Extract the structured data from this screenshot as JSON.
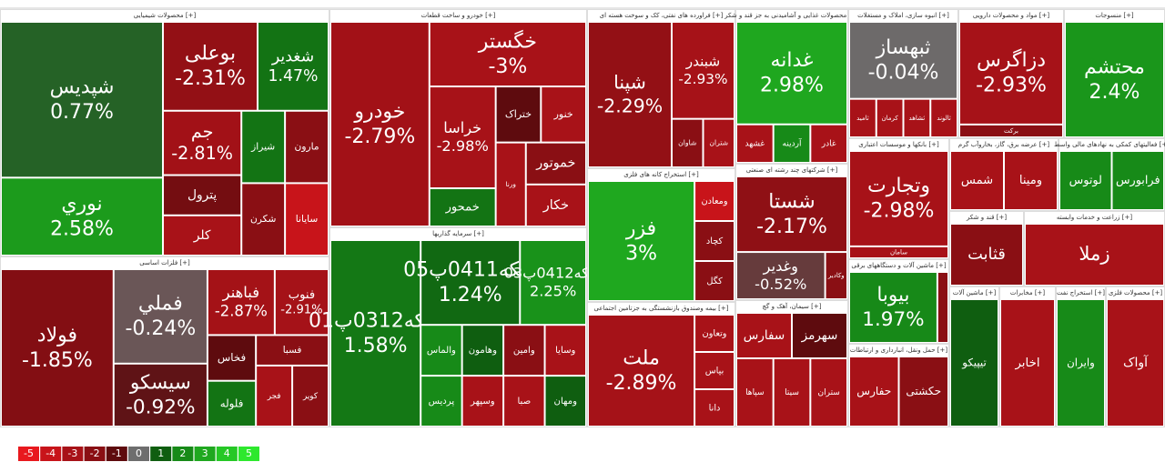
{
  "chart_data": {
    "type": "treemap",
    "sectors": [
      {
        "title": "محصولات شیمیایی [+]",
        "tiles": [
          {
            "name": "شپدیس",
            "value": 0.77,
            "label": "0.77%"
          },
          {
            "name": "نوري",
            "value": 2.58,
            "label": "2.58%"
          },
          {
            "name": "بوعلی",
            "value": -2.31,
            "label": "-2.31%"
          },
          {
            "name": "شغدیر",
            "value": 1.47,
            "label": "1.47%"
          },
          {
            "name": "جم",
            "value": -2.81,
            "label": "-2.81%"
          },
          {
            "name": "پترول",
            "value": -1.5
          },
          {
            "name": "کلر",
            "value": -3
          },
          {
            "name": "شیراز",
            "value": 1.5
          },
          {
            "name": "مارون",
            "value": -2
          },
          {
            "name": "شکرن",
            "value": -2
          },
          {
            "name": "سایانا",
            "value": -4
          }
        ]
      },
      {
        "title": "فلزات اساسی [+]",
        "tiles": [
          {
            "name": "فولاد",
            "value": -1.85,
            "label": "-1.85%"
          },
          {
            "name": "فملي",
            "value": -0.24,
            "label": "-0.24%"
          },
          {
            "name": "سیسکو",
            "value": -0.92,
            "label": "-0.92%"
          },
          {
            "name": "فباهنر",
            "value": -2.87,
            "label": "-2.87%"
          },
          {
            "name": "فنوب",
            "value": -2.91,
            "label": "-2.91%"
          },
          {
            "name": "فخاس",
            "value": -1
          },
          {
            "name": "فلوله",
            "value": 1.5
          },
          {
            "name": "فسبا",
            "value": -2
          },
          {
            "name": "فجر",
            "value": -3
          },
          {
            "name": "کویر",
            "value": -2
          }
        ]
      },
      {
        "title": "خودرو و ساخت قطعات [+]",
        "tiles": [
          {
            "name": "خودرو",
            "value": -2.79,
            "label": "-2.79%"
          },
          {
            "name": "خگستر",
            "value": -3,
            "label": "-3%"
          },
          {
            "name": "خراسا",
            "value": -2.98,
            "label": "-2.98%"
          },
          {
            "name": "خمحور",
            "value": 1.5
          },
          {
            "name": "ختراک",
            "value": -1
          },
          {
            "name": "خنور",
            "value": -3
          },
          {
            "name": "ورنا",
            "value": -3
          },
          {
            "name": "خموتور",
            "value": -2
          },
          {
            "name": "خکار",
            "value": -3
          }
        ]
      },
      {
        "title": "سرمایه گذاریها [+]",
        "tiles": [
          {
            "name": "سکه0312پ01",
            "value": 1.58,
            "label": "1.58%"
          },
          {
            "name": "سکه0411پ05",
            "value": 1.24,
            "label": "1.24%"
          },
          {
            "name": "سکه0412پ03",
            "value": 2.25,
            "label": "2.25%"
          },
          {
            "name": "والماس",
            "value": 2
          },
          {
            "name": "وهامون",
            "value": 1
          },
          {
            "name": "پردیس",
            "value": 2
          },
          {
            "name": "وسپهر",
            "value": -3
          },
          {
            "name": "وامین",
            "value": -2
          },
          {
            "name": "وسایا",
            "value": -3
          },
          {
            "name": "صبا",
            "value": -3
          },
          {
            "name": "ومهان",
            "value": 1
          }
        ]
      },
      {
        "title": "فراورده های نفتی، کک و سوخت هسته ای [+]",
        "tiles": [
          {
            "name": "شپنا",
            "value": -2.29,
            "label": "-2.29%"
          },
          {
            "name": "شبندر",
            "value": -2.93,
            "label": "-2.93%"
          },
          {
            "name": "شاوان",
            "value": -2
          },
          {
            "name": "شتران",
            "value": -3
          }
        ]
      },
      {
        "title": "استخراج کانه های فلزی [+]",
        "tiles": [
          {
            "name": "فزر",
            "value": 3,
            "label": "3%"
          },
          {
            "name": "ومعادن",
            "value": -4
          },
          {
            "name": "کچاد",
            "value": -2
          },
          {
            "name": "کگل",
            "value": -2
          }
        ]
      },
      {
        "title": "بیمه وصندوق بازنشستگی به جزتامین اجتماعی [+]",
        "tiles": [
          {
            "name": "ملت",
            "value": -2.89,
            "label": "-2.89%"
          },
          {
            "name": "وتعاون",
            "value": -3
          },
          {
            "name": "بپاس",
            "value": -3
          },
          {
            "name": "دانا",
            "value": -3
          }
        ]
      },
      {
        "title": "محصولات غذایی و آشامیدنی به جز قند و شکر [+]",
        "tiles": [
          {
            "name": "غدانه",
            "value": 2.98,
            "label": "2.98%"
          },
          {
            "name": "غشهد",
            "value": -3
          },
          {
            "name": "آردینه",
            "value": 2
          },
          {
            "name": "غادر",
            "value": -3
          }
        ]
      },
      {
        "title": "شرکتهای چند رشته ای صنعتی [+]",
        "tiles": [
          {
            "name": "شستا",
            "value": -2.17,
            "label": "-2.17%"
          },
          {
            "name": "وغدیر",
            "value": -0.52,
            "label": "-0.52%"
          },
          {
            "name": "وکادیر",
            "value": -2
          }
        ]
      },
      {
        "title": "سیمان، آهک و گچ [+]",
        "tiles": [
          {
            "name": "سفارس",
            "value": -3
          },
          {
            "name": "سهرمز",
            "value": -1
          },
          {
            "name": "سپاها",
            "value": -3
          },
          {
            "name": "سیتا",
            "value": -3
          },
          {
            "name": "ستران",
            "value": -3
          }
        ]
      },
      {
        "title": "انبوه سازی، املاک و مستغلات [+]",
        "tiles": [
          {
            "name": "ثبهساز",
            "value": -0.04,
            "label": "-0.04%"
          },
          {
            "name": "ثامید",
            "value": -3
          },
          {
            "name": "کرمان",
            "value": -3
          },
          {
            "name": "ثشاهد",
            "value": -3
          },
          {
            "name": "ثالوند",
            "value": -3
          }
        ]
      },
      {
        "title": "بانکها و موسسات اعتباری [+]",
        "tiles": [
          {
            "name": "وتجارت",
            "value": -2.98,
            "label": "-2.98%"
          },
          {
            "name": "سامان",
            "value": -3
          }
        ]
      },
      {
        "title": "ماشین آلات و دستگاههای برقی [+]",
        "tiles": [
          {
            "name": "بیوبا",
            "value": 1.97,
            "label": "1.97%"
          },
          {
            "name": "بترانس",
            "value": -2
          }
        ]
      },
      {
        "title": "حمل ونقل، انبارداری و ارتباطات [+]",
        "tiles": [
          {
            "name": "حفارس",
            "value": -3
          },
          {
            "name": "حکشتی",
            "value": -2
          }
        ]
      },
      {
        "title": "مواد و محصولات دارویی [+]",
        "tiles": [
          {
            "name": "دزاگرس",
            "value": -2.93,
            "label": "-2.93%"
          },
          {
            "name": "برکت",
            "value": -2
          }
        ]
      },
      {
        "title": "منسوجات [+]",
        "tiles": [
          {
            "name": "محتشم",
            "value": 2.4,
            "label": "2.4%"
          }
        ]
      },
      {
        "title": "عرضه برق، گاز، بخاروآب گرم [+]",
        "tiles": [
          {
            "name": "شمس",
            "value": -3
          },
          {
            "name": "ومینا",
            "value": -3
          }
        ]
      },
      {
        "title": "فعالیتهای کمکی به نهادهای مالی واسط [+]",
        "tiles": [
          {
            "name": "لوتوس",
            "value": 2
          },
          {
            "name": "فرابورس",
            "value": 2
          }
        ]
      },
      {
        "title": "قند و شکر [+]",
        "tiles": [
          {
            "name": "قثابت",
            "value": -2
          }
        ]
      },
      {
        "title": "زراعت و خدمات وابسته [+]",
        "tiles": [
          {
            "name": "زملا",
            "value": -3
          }
        ]
      },
      {
        "title": "ماشین آلات [+]",
        "tiles": [
          {
            "name": "تیپیکو",
            "value": 1
          }
        ]
      },
      {
        "title": "مخابرات [+]",
        "tiles": [
          {
            "name": "اخابر",
            "value": -3
          }
        ]
      },
      {
        "title": "استخراج نفت [+]",
        "tiles": [
          {
            "name": "وایران",
            "value": 2
          }
        ]
      },
      {
        "title": "محصولات فلزی [+]",
        "tiles": [
          {
            "name": "آواک",
            "value": -3
          }
        ]
      }
    ],
    "legend": {
      "values": [
        -5,
        -4,
        -3,
        -2,
        -1,
        0,
        1,
        2,
        3,
        4,
        5
      ],
      "colors": [
        "#e8191e",
        "#c8141a",
        "#a81218",
        "#8a0f14",
        "#5e0b0e",
        "#6e6e6e",
        "#0f5e10",
        "#178a18",
        "#1fa81f",
        "#26c826",
        "#2ee82e"
      ]
    }
  }
}
